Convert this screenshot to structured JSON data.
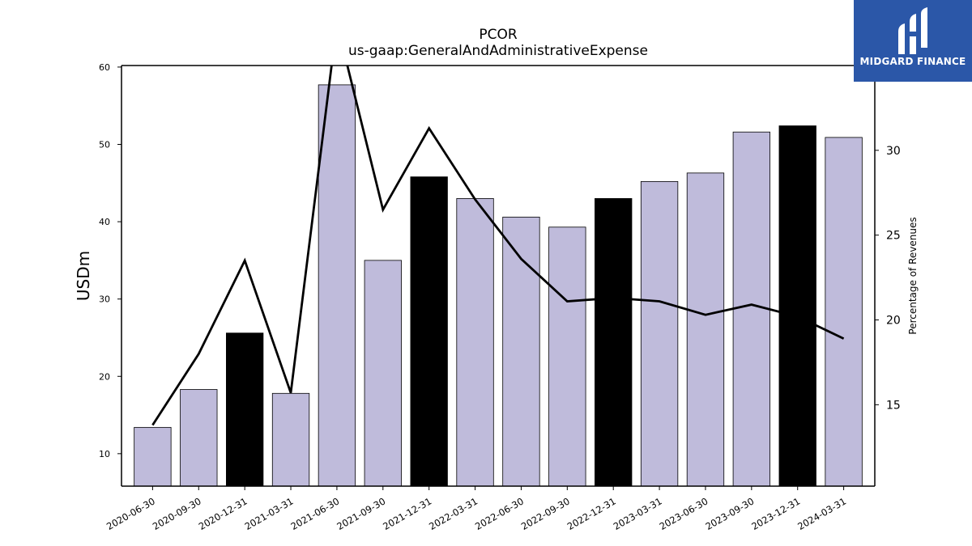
{
  "chart_data": {
    "type": "bar",
    "title": "PCOR",
    "subtitle": "us-gaap:GeneralAndAdministrativeExpense",
    "ylabel": "USDm",
    "y2label": "Percentage of Revenues",
    "ylim": [
      5.8,
      60.2
    ],
    "y2lim": [
      10.2,
      35.0
    ],
    "yticks": [
      10,
      20,
      30,
      40,
      50,
      60
    ],
    "y2ticks": [
      15,
      20,
      25,
      30
    ],
    "categories": [
      "2020-06-30",
      "2020-09-30",
      "2020-12-31",
      "2021-03-31",
      "2021-06-30",
      "2021-09-30",
      "2021-12-31",
      "2022-03-31",
      "2022-06-30",
      "2022-09-30",
      "2022-12-31",
      "2023-03-31",
      "2023-06-30",
      "2023-09-30",
      "2023-12-31",
      "2024-03-31"
    ],
    "series": [
      {
        "values": [
          13.4,
          18.3,
          25.6,
          17.8,
          57.7,
          35.0,
          45.8,
          43.0,
          40.6,
          39.3,
          43.0,
          45.2,
          46.3,
          51.6,
          52.4,
          50.9
        ],
        "highlight": [
          false,
          false,
          true,
          false,
          false,
          false,
          true,
          false,
          false,
          false,
          true,
          false,
          false,
          false,
          true,
          false
        ]
      },
      {
        "axis": "right",
        "type": "line",
        "values": [
          13.8,
          18.0,
          23.5,
          15.7,
          37.5,
          26.5,
          31.3,
          27.1,
          23.6,
          21.1,
          21.3,
          21.1,
          20.3,
          20.9,
          20.2,
          18.9
        ]
      }
    ],
    "colors": {
      "bar": "#bfbbdb",
      "bar_highlight": "#000000",
      "line": "#000000"
    }
  },
  "logo": {
    "text": "MIDGARD FINANCE",
    "bg": "#2b57a8"
  }
}
